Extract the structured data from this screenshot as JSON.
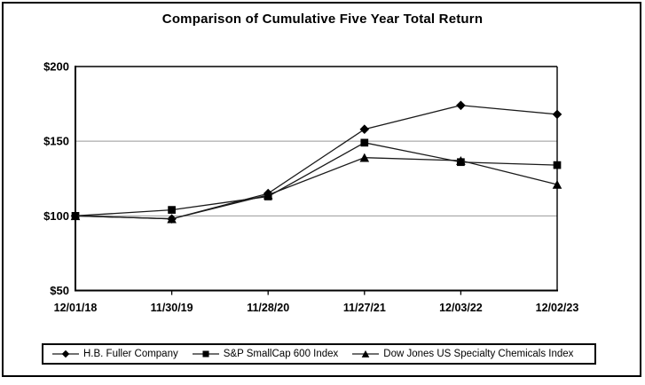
{
  "window": {
    "background": "#ffffff",
    "border_color": "#000000"
  },
  "chart_data": {
    "type": "line",
    "title": "Comparison of Cumulative Five Year Total Return",
    "categories": [
      "12/01/18",
      "11/30/19",
      "11/28/20",
      "11/27/21",
      "12/03/22",
      "12/02/23"
    ],
    "series": [
      {
        "name": "H.B. Fuller Company",
        "marker": "diamond",
        "values": [
          100,
          98,
          115,
          158,
          174,
          168
        ]
      },
      {
        "name": "S&P SmallCap 600 Index",
        "marker": "square",
        "values": [
          100,
          104,
          113,
          149,
          136,
          134
        ]
      },
      {
        "name": "Dow Jones US Specialty Chemicals Index",
        "marker": "triangle",
        "values": [
          100,
          98,
          114,
          139,
          137,
          121
        ]
      }
    ],
    "xlabel": "",
    "ylabel": "",
    "ylim": [
      50,
      200
    ],
    "yticks": [
      50,
      100,
      150,
      200
    ],
    "ytick_labels": [
      "$50",
      "$100",
      "$150",
      "$200"
    ],
    "grid": true,
    "legend_position": "bottom",
    "line_color": "#1a1a1a",
    "marker_color": "#000000",
    "grid_color": "#999999",
    "axis_color": "#000000",
    "text_color": "#000000"
  }
}
